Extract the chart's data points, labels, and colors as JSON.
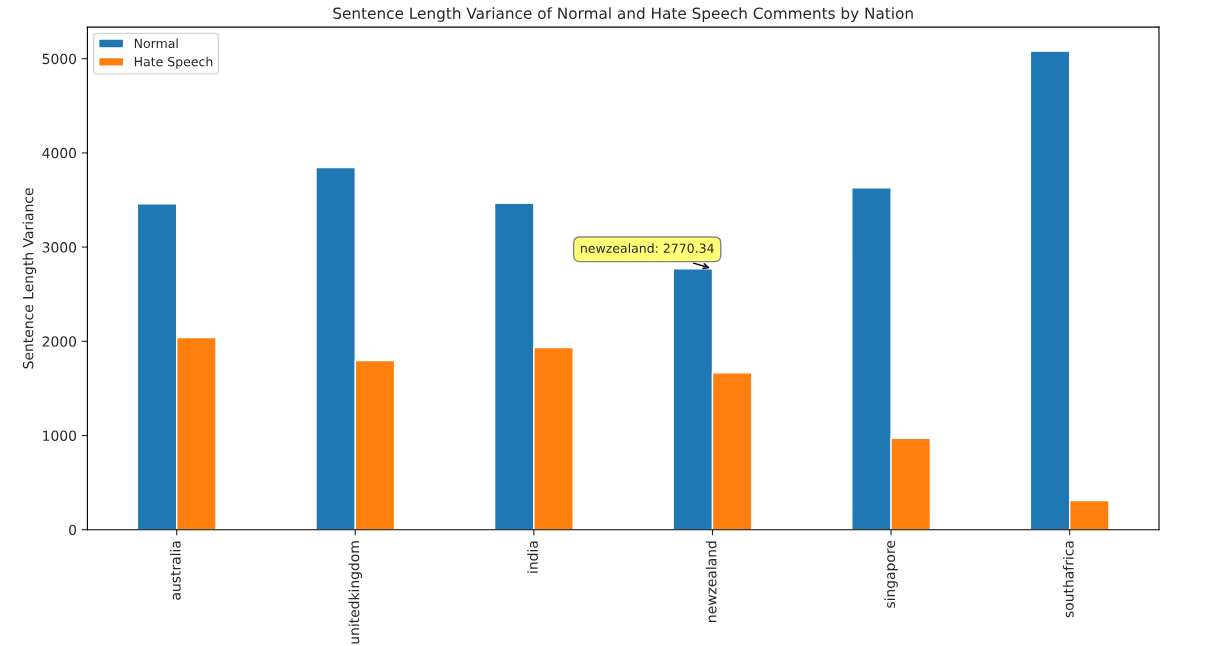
{
  "chart_data": {
    "type": "bar",
    "title": "Sentence Length Variance of Normal and Hate Speech Comments by Nation",
    "ylabel": "Sentence Length Variance",
    "categories": [
      "australia",
      "unitedkingdom",
      "india",
      "newzealand",
      "singapore",
      "southafrica"
    ],
    "series": [
      {
        "name": "Normal",
        "color": "#1f77b4",
        "values": [
          3460,
          3845,
          3465,
          2770.34,
          3630,
          5080
        ]
      },
      {
        "name": "Hate Speech",
        "color": "#ff7f0e",
        "values": [
          2040,
          1795,
          1935,
          1665,
          970,
          310
        ]
      }
    ],
    "ylim": [
      0,
      5335
    ],
    "yticks": [
      0,
      1000,
      2000,
      3000,
      4000,
      5000
    ],
    "annotations": [
      {
        "text": "newzealand: 2770.34",
        "x": "newzealand",
        "y": 2770.34
      }
    ],
    "legend": "top left",
    "grid": false
  }
}
